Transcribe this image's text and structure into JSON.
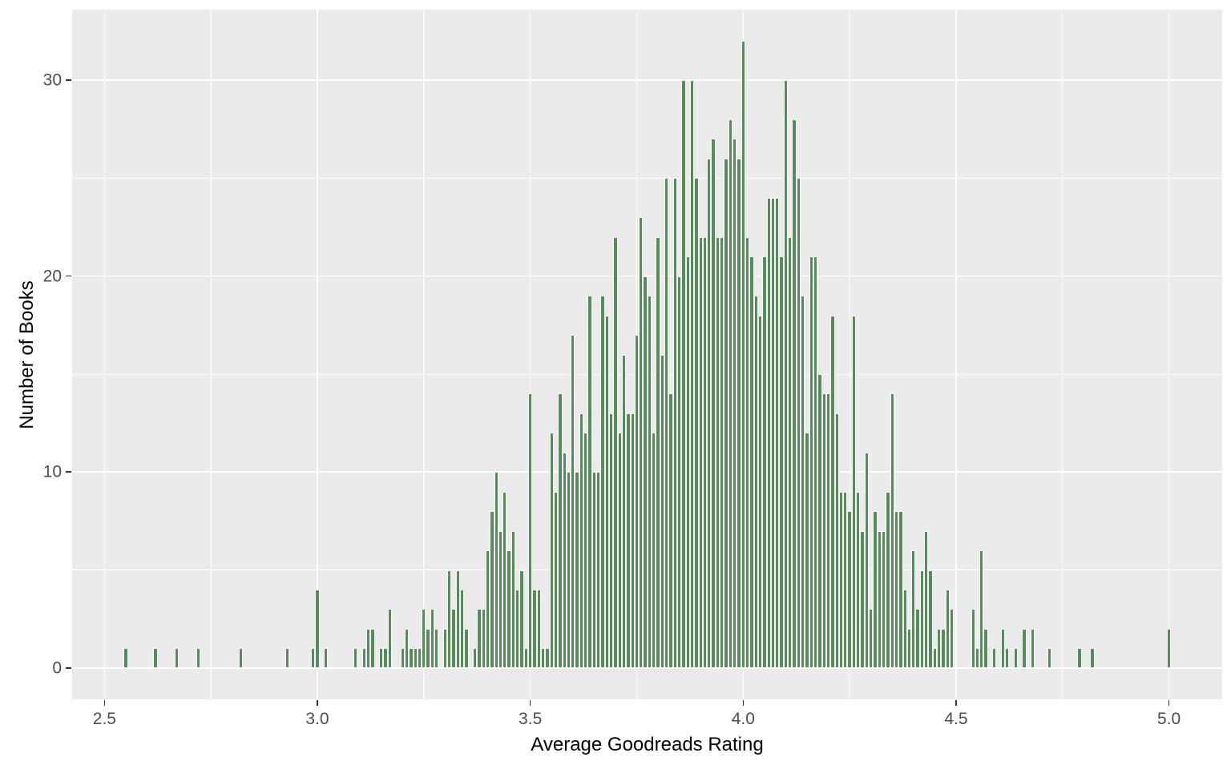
{
  "chart_data": {
    "type": "bar",
    "subtype": "histogram",
    "title": "",
    "xlabel": "Average Goodreads Rating",
    "ylabel": "Number of Books",
    "bin_width": 0.01,
    "xlim": [
      2.424,
      5.125
    ],
    "ylim": [
      -1.6,
      33.6
    ],
    "x_ticks": [
      {
        "value": 2.5,
        "label": "2.5"
      },
      {
        "value": 3.0,
        "label": "3.0"
      },
      {
        "value": 3.5,
        "label": "3.5"
      },
      {
        "value": 4.0,
        "label": "4.0"
      },
      {
        "value": 4.5,
        "label": "4.5"
      },
      {
        "value": 5.0,
        "label": "5.0"
      }
    ],
    "y_ticks": [
      {
        "value": 0,
        "label": "0"
      },
      {
        "value": 10,
        "label": "10"
      },
      {
        "value": 20,
        "label": "20"
      },
      {
        "value": 30,
        "label": "30"
      }
    ],
    "x_minor_gridlines": [
      2.75,
      3.25,
      3.75,
      4.25,
      4.75
    ],
    "y_minor_gridlines": [
      5,
      15,
      25
    ],
    "grid": true,
    "legend_position": "none",
    "colors": {
      "bar_fill": "#538d57",
      "bar_stroke": "#ffffff",
      "panel_bg": "#ebebeb",
      "gridline": "#ffffff",
      "tick_label": "#4d4d4d",
      "axis_title": "#000000",
      "tick_mark": "#333333",
      "outer_bg": "#ffffff"
    },
    "bins": [
      [
        2.55,
        1
      ],
      [
        2.62,
        1
      ],
      [
        2.67,
        1
      ],
      [
        2.72,
        1
      ],
      [
        2.82,
        1
      ],
      [
        2.93,
        1
      ],
      [
        2.99,
        1
      ],
      [
        3.0,
        4
      ],
      [
        3.02,
        1
      ],
      [
        3.09,
        1
      ],
      [
        3.11,
        1
      ],
      [
        3.12,
        2
      ],
      [
        3.13,
        2
      ],
      [
        3.15,
        1
      ],
      [
        3.16,
        1
      ],
      [
        3.17,
        3
      ],
      [
        3.2,
        1
      ],
      [
        3.21,
        2
      ],
      [
        3.22,
        1
      ],
      [
        3.23,
        1
      ],
      [
        3.24,
        1
      ],
      [
        3.25,
        3
      ],
      [
        3.26,
        2
      ],
      [
        3.27,
        3
      ],
      [
        3.28,
        2
      ],
      [
        3.3,
        2
      ],
      [
        3.31,
        5
      ],
      [
        3.32,
        3
      ],
      [
        3.33,
        5
      ],
      [
        3.34,
        4
      ],
      [
        3.35,
        2
      ],
      [
        3.37,
        1
      ],
      [
        3.38,
        3
      ],
      [
        3.39,
        3
      ],
      [
        3.4,
        6
      ],
      [
        3.41,
        8
      ],
      [
        3.42,
        10
      ],
      [
        3.43,
        7
      ],
      [
        3.44,
        9
      ],
      [
        3.45,
        6
      ],
      [
        3.46,
        7
      ],
      [
        3.47,
        4
      ],
      [
        3.48,
        5
      ],
      [
        3.49,
        1
      ],
      [
        3.5,
        14
      ],
      [
        3.51,
        4
      ],
      [
        3.52,
        4
      ],
      [
        3.53,
        1
      ],
      [
        3.54,
        1
      ],
      [
        3.55,
        12
      ],
      [
        3.56,
        9
      ],
      [
        3.57,
        14
      ],
      [
        3.58,
        11
      ],
      [
        3.59,
        10
      ],
      [
        3.6,
        17
      ],
      [
        3.61,
        10
      ],
      [
        3.62,
        13
      ],
      [
        3.63,
        12
      ],
      [
        3.64,
        19
      ],
      [
        3.65,
        10
      ],
      [
        3.66,
        10
      ],
      [
        3.67,
        19
      ],
      [
        3.68,
        18
      ],
      [
        3.69,
        13
      ],
      [
        3.7,
        22
      ],
      [
        3.71,
        12
      ],
      [
        3.72,
        16
      ],
      [
        3.73,
        13
      ],
      [
        3.74,
        13
      ],
      [
        3.75,
        17
      ],
      [
        3.76,
        23
      ],
      [
        3.77,
        20
      ],
      [
        3.78,
        19
      ],
      [
        3.79,
        12
      ],
      [
        3.8,
        22
      ],
      [
        3.81,
        16
      ],
      [
        3.82,
        25
      ],
      [
        3.83,
        14
      ],
      [
        3.84,
        25
      ],
      [
        3.85,
        20
      ],
      [
        3.86,
        30
      ],
      [
        3.87,
        21
      ],
      [
        3.88,
        30
      ],
      [
        3.89,
        25
      ],
      [
        3.9,
        22
      ],
      [
        3.91,
        22
      ],
      [
        3.92,
        26
      ],
      [
        3.93,
        27
      ],
      [
        3.94,
        22
      ],
      [
        3.95,
        22
      ],
      [
        3.96,
        26
      ],
      [
        3.97,
        28
      ],
      [
        3.98,
        27
      ],
      [
        3.99,
        26
      ],
      [
        4.0,
        32
      ],
      [
        4.01,
        22
      ],
      [
        4.02,
        21
      ],
      [
        4.03,
        19
      ],
      [
        4.04,
        18
      ],
      [
        4.05,
        21
      ],
      [
        4.06,
        24
      ],
      [
        4.07,
        24
      ],
      [
        4.08,
        24
      ],
      [
        4.09,
        21
      ],
      [
        4.1,
        30
      ],
      [
        4.11,
        22
      ],
      [
        4.12,
        28
      ],
      [
        4.13,
        25
      ],
      [
        4.14,
        19
      ],
      [
        4.15,
        12
      ],
      [
        4.16,
        21
      ],
      [
        4.17,
        21
      ],
      [
        4.18,
        15
      ],
      [
        4.19,
        14
      ],
      [
        4.2,
        14
      ],
      [
        4.21,
        18
      ],
      [
        4.22,
        13
      ],
      [
        4.23,
        9
      ],
      [
        4.24,
        9
      ],
      [
        4.25,
        8
      ],
      [
        4.26,
        18
      ],
      [
        4.27,
        9
      ],
      [
        4.28,
        7
      ],
      [
        4.29,
        11
      ],
      [
        4.3,
        3
      ],
      [
        4.31,
        8
      ],
      [
        4.32,
        7
      ],
      [
        4.33,
        7
      ],
      [
        4.34,
        9
      ],
      [
        4.35,
        14
      ],
      [
        4.36,
        8
      ],
      [
        4.37,
        8
      ],
      [
        4.38,
        4
      ],
      [
        4.39,
        2
      ],
      [
        4.4,
        6
      ],
      [
        4.41,
        3
      ],
      [
        4.42,
        5
      ],
      [
        4.43,
        7
      ],
      [
        4.44,
        5
      ],
      [
        4.45,
        1
      ],
      [
        4.46,
        2
      ],
      [
        4.47,
        2
      ],
      [
        4.48,
        4
      ],
      [
        4.49,
        3
      ],
      [
        4.54,
        3
      ],
      [
        4.55,
        1
      ],
      [
        4.56,
        6
      ],
      [
        4.57,
        2
      ],
      [
        4.59,
        1
      ],
      [
        4.61,
        2
      ],
      [
        4.62,
        1
      ],
      [
        4.64,
        1
      ],
      [
        4.66,
        2
      ],
      [
        4.68,
        2
      ],
      [
        4.72,
        1
      ],
      [
        4.79,
        1
      ],
      [
        4.82,
        1
      ],
      [
        5.0,
        2
      ]
    ]
  }
}
